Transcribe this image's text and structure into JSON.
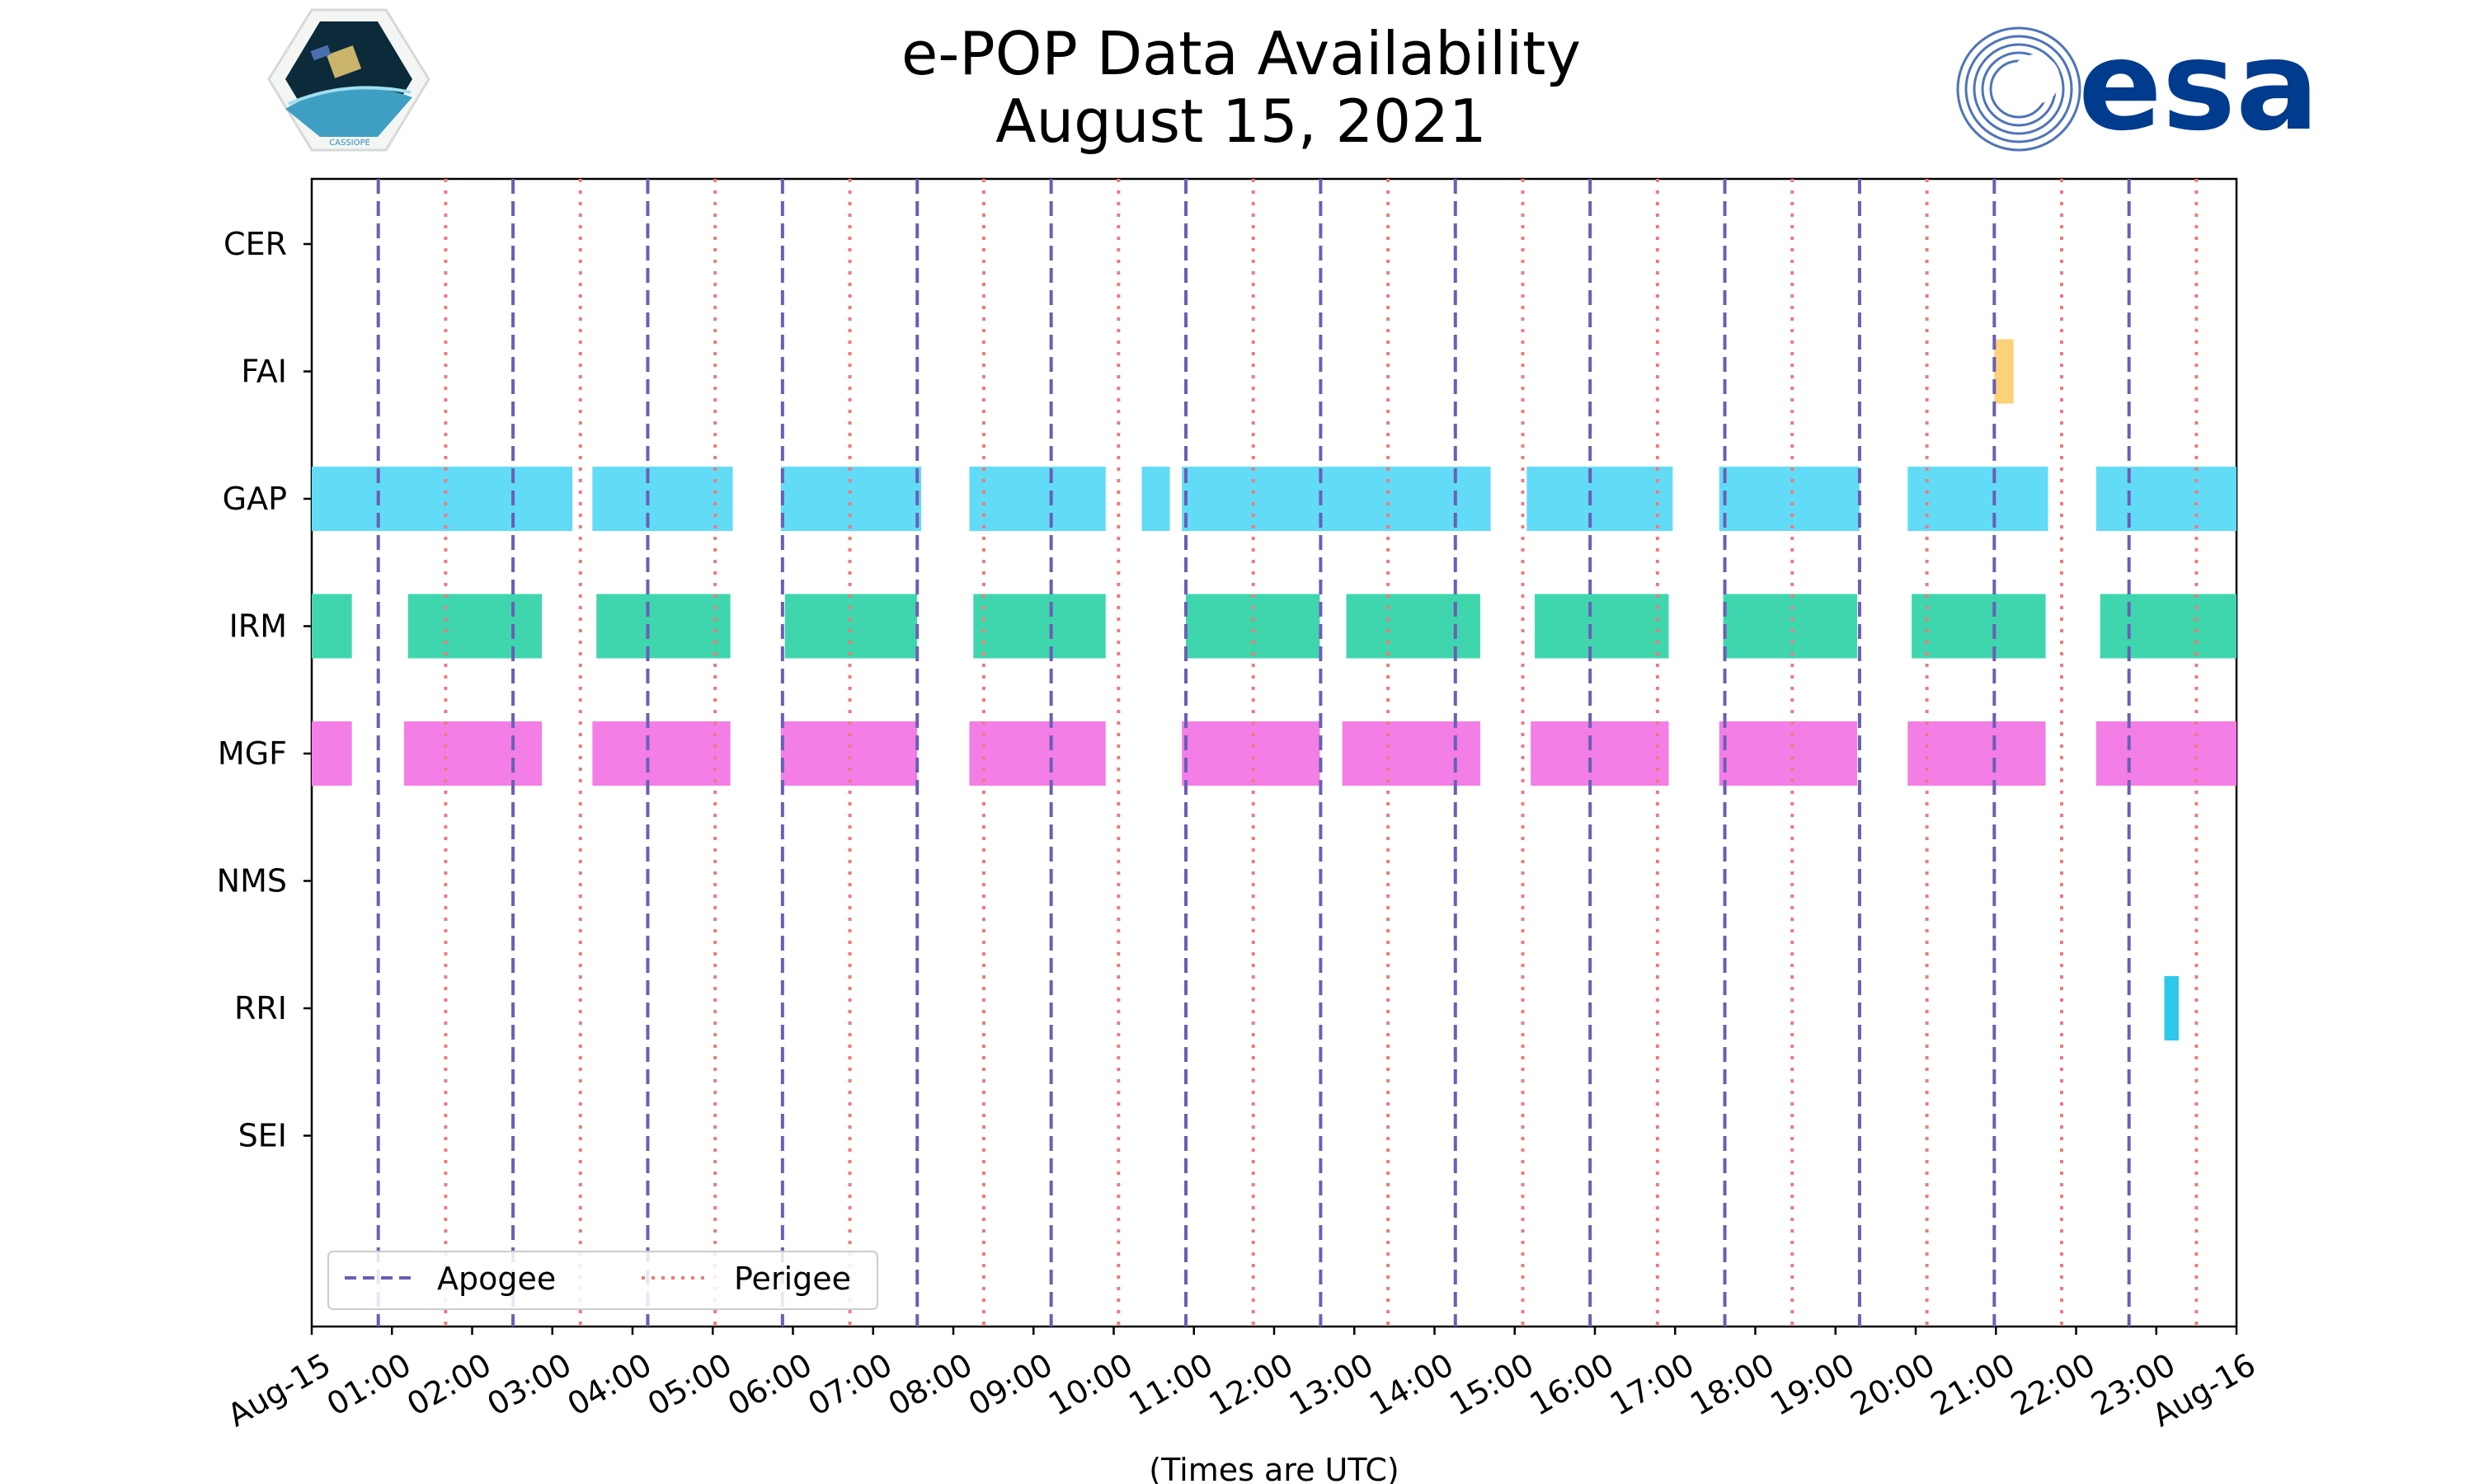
{
  "header": {
    "title_line1": "e-POP Data Availability",
    "title_line2": "August 15, 2021"
  },
  "logos": {
    "left_text": "CASSIOPE",
    "right_text": "esa",
    "right_color": "#003b8e"
  },
  "colors": {
    "apogee": "#6a5fb5",
    "perigee": "#f07a7a",
    "axis": "#000000"
  },
  "chart_data": {
    "type": "timeline",
    "title": "e-POP Data Availability August 15, 2021",
    "xlabel": "(Times are UTC)",
    "x_unit": "hours",
    "xlim": [
      0,
      24
    ],
    "x_ticks": [
      0,
      1,
      2,
      3,
      4,
      5,
      6,
      7,
      8,
      9,
      10,
      11,
      12,
      13,
      14,
      15,
      16,
      17,
      18,
      19,
      20,
      21,
      22,
      23,
      24
    ],
    "x_tick_labels": [
      "Aug-15",
      "01:00",
      "02:00",
      "03:00",
      "04:00",
      "05:00",
      "06:00",
      "07:00",
      "08:00",
      "09:00",
      "10:00",
      "11:00",
      "12:00",
      "13:00",
      "14:00",
      "15:00",
      "16:00",
      "17:00",
      "18:00",
      "19:00",
      "20:00",
      "21:00",
      "22:00",
      "23:00",
      "Aug-16"
    ],
    "categories": [
      "CER",
      "FAI",
      "GAP",
      "IRM",
      "MGF",
      "NMS",
      "RRI",
      "SEI"
    ],
    "series": [
      {
        "name": "CER",
        "color": "#999999",
        "intervals": []
      },
      {
        "name": "FAI",
        "color": "#fdd07a",
        "intervals": [
          [
            20.98,
            21.22
          ]
        ]
      },
      {
        "name": "GAP",
        "color": "#62dbf7",
        "intervals": [
          [
            0.0,
            3.25
          ],
          [
            3.5,
            5.25
          ],
          [
            5.85,
            7.6
          ],
          [
            8.2,
            9.9
          ],
          [
            10.35,
            10.7
          ],
          [
            10.85,
            14.7
          ],
          [
            15.15,
            16.97
          ],
          [
            17.55,
            19.3
          ],
          [
            19.9,
            21.65
          ],
          [
            22.25,
            24.0
          ]
        ]
      },
      {
        "name": "IRM",
        "color": "#3fd6ae",
        "intervals": [
          [
            0.0,
            0.5
          ],
          [
            1.2,
            2.87
          ],
          [
            3.55,
            5.22
          ],
          [
            5.9,
            7.55
          ],
          [
            8.25,
            9.9
          ],
          [
            10.9,
            12.57
          ],
          [
            12.9,
            14.57
          ],
          [
            15.25,
            16.92
          ],
          [
            17.6,
            19.27
          ],
          [
            19.95,
            21.62
          ],
          [
            22.3,
            24.0
          ]
        ]
      },
      {
        "name": "MGF",
        "color": "#f27ee6",
        "intervals": [
          [
            0.0,
            0.5
          ],
          [
            1.15,
            2.87
          ],
          [
            3.5,
            5.22
          ],
          [
            5.85,
            7.55
          ],
          [
            8.2,
            9.9
          ],
          [
            10.85,
            12.57
          ],
          [
            12.85,
            14.57
          ],
          [
            15.2,
            16.92
          ],
          [
            17.55,
            19.27
          ],
          [
            19.9,
            21.62
          ],
          [
            22.25,
            24.0
          ]
        ]
      },
      {
        "name": "NMS",
        "color": "#999999",
        "intervals": []
      },
      {
        "name": "RRI",
        "color": "#2ec8ea",
        "intervals": [
          [
            23.1,
            23.28
          ]
        ]
      },
      {
        "name": "SEI",
        "color": "#999999",
        "intervals": []
      }
    ],
    "apogee_hours": [
      0.83,
      2.51,
      4.19,
      5.87,
      7.55,
      9.22,
      10.9,
      12.58,
      14.26,
      15.94,
      17.62,
      19.3,
      20.98,
      22.66
    ],
    "perigee_hours": [
      1.67,
      3.35,
      5.03,
      6.71,
      8.38,
      10.06,
      11.74,
      13.42,
      15.1,
      16.78,
      18.46,
      20.14,
      21.82,
      23.5
    ],
    "legend": [
      {
        "label": "Apogee",
        "style": "dashed",
        "color": "#6a5fb5"
      },
      {
        "label": "Perigee",
        "style": "dotted",
        "color": "#f07a7a"
      }
    ],
    "legend_position": "lower-left"
  }
}
